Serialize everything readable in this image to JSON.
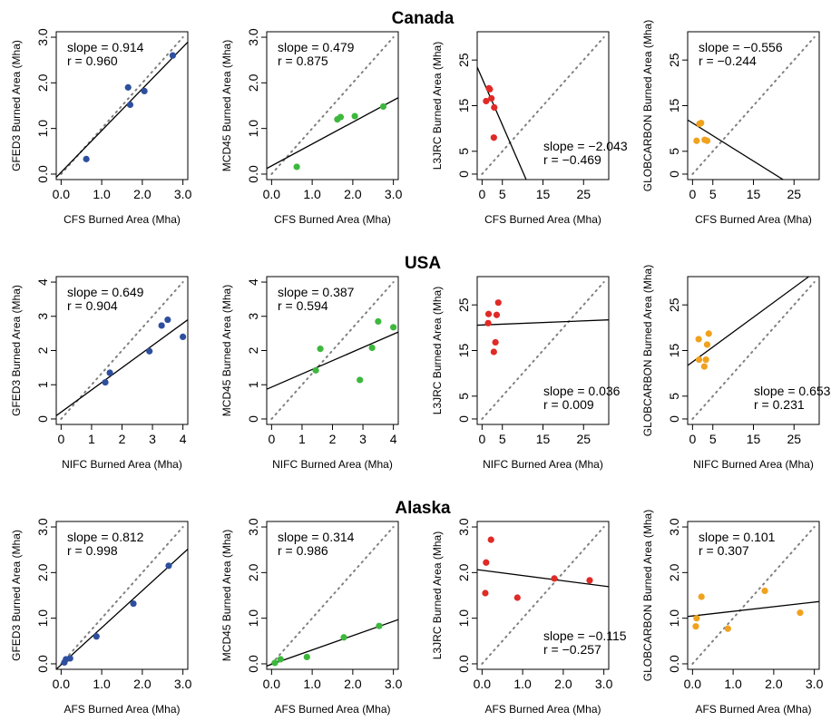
{
  "colors": {
    "Canada": "#2e4f9e",
    "MCD45": "#3db83d",
    "L3JRC": "#e02a26",
    "GLOBCARBON": "#f0a21e"
  },
  "rows": [
    {
      "title": "Canada",
      "xlabel": "CFS Burned Area (Mha)"
    },
    {
      "title": "USA",
      "xlabel": "NIFC Burned Area (Mha)"
    },
    {
      "title": "Alaska",
      "xlabel": "AFS Burned Area (Mha)"
    }
  ],
  "ylabels": [
    "GFED3 Burned Area (Mha)",
    "MCD45 Burned Area (Mha)",
    "L3JRC Burned Area (Mha)",
    "GLOBCARBON Burned Area (Mha)"
  ],
  "chart_data": [
    {
      "type": "scatter",
      "row": "Canada",
      "xlabel": "CFS Burned Area (Mha)",
      "ylabel": "GFED3 Burned Area (Mha)",
      "color": "#2e4f9e",
      "xlim": [
        0,
        3.0
      ],
      "ylim": [
        0,
        3.0
      ],
      "xticks": [
        "0.0",
        "1.0",
        "2.0",
        "3.0"
      ],
      "yticks": [
        "0.0",
        "1.0",
        "2.0",
        "3.0"
      ],
      "x": [
        0.62,
        1.65,
        1.7,
        2.05,
        2.75
      ],
      "y": [
        0.33,
        1.9,
        1.52,
        1.82,
        2.6
      ],
      "fit": {
        "slope": 0.914,
        "intercept": 0.04
      },
      "ann_slope": "slope = 0.914",
      "ann_r": "r = 0.960"
    },
    {
      "type": "scatter",
      "row": "Canada",
      "xlabel": "CFS Burned Area (Mha)",
      "ylabel": "MCD45 Burned Area (Mha)",
      "color": "#3db83d",
      "xlim": [
        0,
        3.0
      ],
      "ylim": [
        0,
        3.0
      ],
      "xticks": [
        "0.0",
        "1.0",
        "2.0",
        "3.0"
      ],
      "yticks": [
        "0.0",
        "1.0",
        "2.0",
        "3.0"
      ],
      "x": [
        0.62,
        1.62,
        1.7,
        2.05,
        2.75
      ],
      "y": [
        0.16,
        1.2,
        1.25,
        1.27,
        1.48
      ],
      "fit": {
        "slope": 0.479,
        "intercept": 0.18
      },
      "ann_slope": "slope = 0.479",
      "ann_r": "r = 0.875"
    },
    {
      "type": "scatter",
      "row": "Canada",
      "xlabel": "CFS Burned Area (Mha)",
      "ylabel": "L3JRC Burned Area (Mha)",
      "color": "#e02a26",
      "xlim": [
        0,
        30
      ],
      "ylim": [
        0,
        30
      ],
      "xticks": [
        "0",
        "5",
        "15",
        "25"
      ],
      "yticks": [
        "0",
        "5",
        "15",
        "25"
      ],
      "x": [
        1.0,
        1.7,
        1.9,
        2.3,
        3.0,
        2.9
      ],
      "y": [
        16.0,
        18.8,
        18.6,
        16.6,
        14.6,
        8.0
      ],
      "fit": {
        "slope": -2.043,
        "intercept": 21.0
      },
      "ann_slope": "slope = −2.043",
      "ann_r": "r = −0.469"
    },
    {
      "type": "scatter",
      "row": "Canada",
      "xlabel": "CFS Burned Area (Mha)",
      "ylabel": "GLOBCARBON Burned Area (Mha)",
      "color": "#f0a21e",
      "xlim": [
        0,
        30
      ],
      "ylim": [
        0,
        30
      ],
      "xticks": [
        "0",
        "5",
        "15",
        "25"
      ],
      "yticks": [
        "0",
        "5",
        "15",
        "25"
      ],
      "x": [
        1.0,
        1.7,
        2.1,
        3.0,
        3.6
      ],
      "y": [
        7.3,
        11.0,
        11.2,
        7.5,
        7.3
      ],
      "fit": {
        "slope": -0.556,
        "intercept": 11.2
      },
      "ann_slope": "slope = −0.556",
      "ann_r": "r = −0.244"
    },
    {
      "type": "scatter",
      "row": "USA",
      "xlabel": "NIFC Burned Area (Mha)",
      "ylabel": "GFED3 Burned Area (Mha)",
      "color": "#2e4f9e",
      "xlim": [
        0,
        4
      ],
      "ylim": [
        0,
        4
      ],
      "xticks": [
        "0",
        "1",
        "2",
        "3",
        "4"
      ],
      "yticks": [
        "0",
        "1",
        "2",
        "3",
        "4"
      ],
      "x": [
        1.45,
        1.6,
        2.9,
        3.3,
        3.5,
        4.0
      ],
      "y": [
        1.07,
        1.35,
        1.98,
        2.73,
        2.9,
        2.4
      ],
      "fit": {
        "slope": 0.649,
        "intercept": 0.2
      },
      "ann_slope": "slope = 0.649",
      "ann_r": "r = 0.904"
    },
    {
      "type": "scatter",
      "row": "USA",
      "xlabel": "NIFC Burned Area (Mha)",
      "ylabel": "MCD45 Burned Area (Mha)",
      "color": "#3db83d",
      "xlim": [
        0,
        4
      ],
      "ylim": [
        0,
        4
      ],
      "xticks": [
        "0",
        "1",
        "2",
        "3",
        "4"
      ],
      "yticks": [
        "0",
        "1",
        "2",
        "3",
        "4"
      ],
      "x": [
        1.45,
        1.6,
        2.9,
        3.3,
        3.5,
        4.0
      ],
      "y": [
        1.42,
        2.05,
        1.14,
        2.08,
        2.85,
        2.68
      ],
      "fit": {
        "slope": 0.387,
        "intercept": 0.93
      },
      "ann_slope": "slope = 0.387",
      "ann_r": "r = 0.594"
    },
    {
      "type": "scatter",
      "row": "USA",
      "xlabel": "NIFC Burned Area (Mha)",
      "ylabel": "L3JRC Burned Area (Mha)",
      "color": "#e02a26",
      "xlim": [
        0,
        30
      ],
      "ylim": [
        0,
        30
      ],
      "xticks": [
        "0",
        "5",
        "15",
        "25"
      ],
      "yticks": [
        "0",
        "5",
        "15",
        "25"
      ],
      "x": [
        1.5,
        1.6,
        2.9,
        3.3,
        3.6,
        4.0
      ],
      "y": [
        21.0,
        23.0,
        14.7,
        16.8,
        22.8,
        25.5
      ],
      "fit": {
        "slope": 0.036,
        "intercept": 20.6
      },
      "ann_slope": "slope = 0.036",
      "ann_r": "r = 0.009"
    },
    {
      "type": "scatter",
      "row": "USA",
      "xlabel": "NIFC Burned Area (Mha)",
      "ylabel": "GLOBCARBON Burned Area (Mha)",
      "color": "#f0a21e",
      "xlim": [
        0,
        30
      ],
      "ylim": [
        0,
        30
      ],
      "xticks": [
        "0",
        "5",
        "15",
        "25"
      ],
      "yticks": [
        "0",
        "5",
        "15",
        "25"
      ],
      "x": [
        1.5,
        1.6,
        2.9,
        3.3,
        3.6,
        4.0
      ],
      "y": [
        17.5,
        13.0,
        11.5,
        13.0,
        16.3,
        18.7
      ],
      "fit": {
        "slope": 0.653,
        "intercept": 12.5
      },
      "ann_slope": "slope = 0.653",
      "ann_r": "r = 0.231"
    },
    {
      "type": "scatter",
      "row": "Alaska",
      "xlabel": "AFS Burned Area (Mha)",
      "ylabel": "GFED3 Burned Area (Mha)",
      "color": "#2e4f9e",
      "xlim": [
        0,
        3.0
      ],
      "ylim": [
        0,
        3.0
      ],
      "xticks": [
        "0.0",
        "1.0",
        "2.0",
        "3.0"
      ],
      "yticks": [
        "0.0",
        "1.0",
        "2.0",
        "3.0"
      ],
      "x": [
        0.08,
        0.12,
        0.22,
        0.87,
        1.78,
        2.65
      ],
      "y": [
        0.03,
        0.1,
        0.12,
        0.6,
        1.32,
        2.15
      ],
      "fit": {
        "slope": 0.812,
        "intercept": -0.02
      },
      "ann_slope": "slope = 0.812",
      "ann_r": "r = 0.998"
    },
    {
      "type": "scatter",
      "row": "Alaska",
      "xlabel": "AFS Burned Area (Mha)",
      "ylabel": "MCD45 Burned Area (Mha)",
      "color": "#3db83d",
      "xlim": [
        0,
        3.0
      ],
      "ylim": [
        0,
        3.0
      ],
      "xticks": [
        "0.0",
        "1.0",
        "2.0",
        "3.0"
      ],
      "yticks": [
        "0.0",
        "1.0",
        "2.0",
        "3.0"
      ],
      "x": [
        0.08,
        0.22,
        0.87,
        1.78,
        2.65
      ],
      "y": [
        0.02,
        0.1,
        0.15,
        0.58,
        0.83
      ],
      "fit": {
        "slope": 0.314,
        "intercept": -0.01
      },
      "ann_slope": "slope = 0.314",
      "ann_r": "r = 0.986"
    },
    {
      "type": "scatter",
      "row": "Alaska",
      "xlabel": "AFS Burned Area (Mha)",
      "ylabel": "L3JRC Burned Area (Mha)",
      "color": "#e02a26",
      "xlim": [
        0,
        3.0
      ],
      "ylim": [
        0,
        3.0
      ],
      "xticks": [
        "0.0",
        "1.0",
        "2.0",
        "3.0"
      ],
      "yticks": [
        "0.0",
        "1.0",
        "2.0",
        "3.0"
      ],
      "x": [
        0.08,
        0.1,
        0.22,
        0.87,
        1.78,
        2.65
      ],
      "y": [
        1.55,
        2.22,
        2.72,
        1.45,
        1.87,
        1.83
      ],
      "fit": {
        "slope": -0.115,
        "intercept": 2.05
      },
      "ann_slope": "slope = −0.115",
      "ann_r": "r = −0.257"
    },
    {
      "type": "scatter",
      "row": "Alaska",
      "xlabel": "AFS Burned Area (Mha)",
      "ylabel": "GLOBCARBON Burned Area (Mha)",
      "color": "#f0a21e",
      "xlim": [
        0,
        3.0
      ],
      "ylim": [
        0,
        3.0
      ],
      "xticks": [
        "0.0",
        "1.0",
        "2.0",
        "3.0"
      ],
      "yticks": [
        "0.0",
        "1.0",
        "2.0",
        "3.0"
      ],
      "x": [
        0.08,
        0.1,
        0.22,
        0.87,
        1.78,
        2.65
      ],
      "y": [
        0.82,
        1.0,
        1.47,
        0.77,
        1.6,
        1.12
      ],
      "fit": {
        "slope": 0.101,
        "intercept": 1.05
      },
      "ann_slope": "slope = 0.101",
      "ann_r": "r = 0.307"
    }
  ]
}
